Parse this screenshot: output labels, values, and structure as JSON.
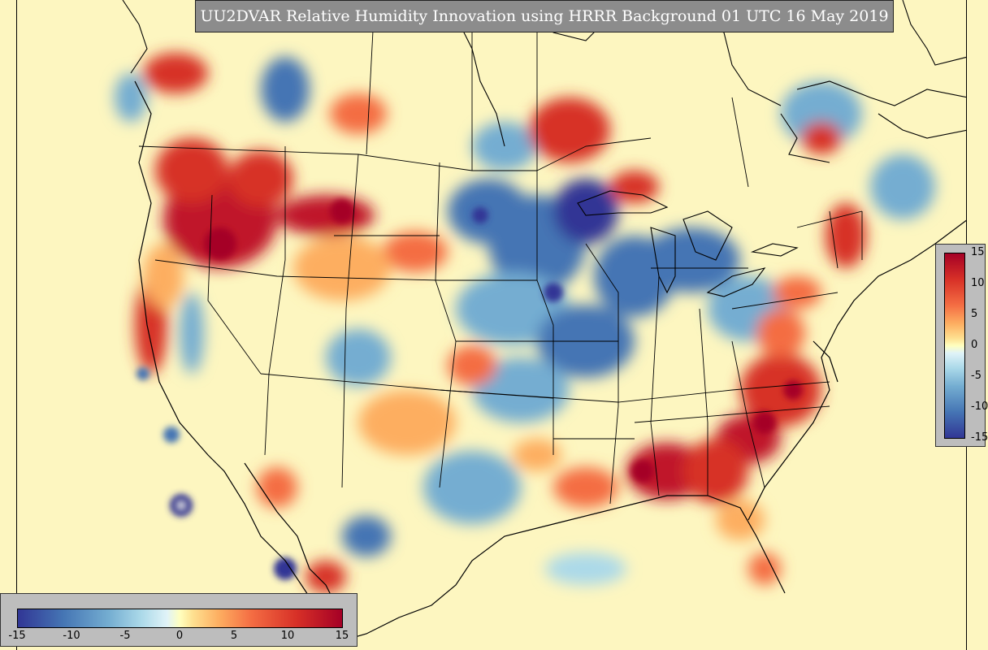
{
  "title": "UU2DVAR Relative Humidity Innovation using HRRR Background 01 UTC 16 May 2019",
  "colorbar": {
    "ticks_vertical": [
      "15",
      "10",
      "5",
      "0",
      "-5",
      "-10",
      "-15"
    ],
    "ticks_horizontal": [
      "-15",
      "-10",
      "-5",
      "0",
      "5",
      "10",
      "15"
    ],
    "min": -15,
    "max": 15,
    "colormap": "RdYlBu_r"
  },
  "colors": {
    "positive_strong": "#a50026",
    "positive": "#f46d43",
    "neutral": "#ffffbf",
    "negative": "#74add1",
    "negative_strong": "#313695",
    "frame": "#bdbdbd",
    "title_background": "#8c8c8c"
  }
}
